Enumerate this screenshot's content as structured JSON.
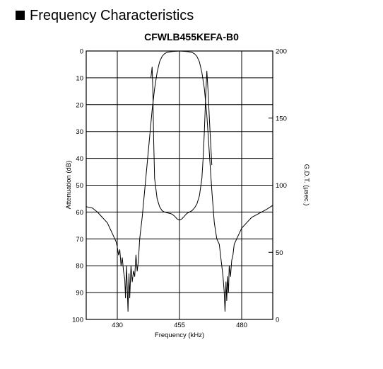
{
  "page": {
    "heading": "Frequency Characteristics"
  },
  "chart_data": {
    "type": "line",
    "title": "CFWLB455KEFA-B0",
    "xlabel": "Frequency (kHz)",
    "ylabel": "Attenuation (dB)",
    "y2label": "G.D.T. (µsec.)",
    "xlim": [
      417.5,
      492.5
    ],
    "ylim": [
      100,
      0
    ],
    "y2lim": [
      0,
      200
    ],
    "x_ticks": [
      430,
      455,
      480
    ],
    "y_ticks": [
      0,
      10,
      20,
      30,
      40,
      50,
      60,
      70,
      80,
      90,
      100
    ],
    "y2_ticks": [
      0,
      50,
      100,
      150,
      200
    ],
    "grid": true,
    "series": [
      {
        "axis": "left",
        "x": [
          417.5,
          420,
          422,
          424,
          426,
          427,
          428,
          429,
          429.5,
          430,
          430.5,
          431,
          431.5,
          432,
          432.5,
          433,
          433.3,
          433.7,
          434,
          434.3,
          434.7,
          435,
          435.5,
          436,
          436.5,
          437,
          437.5,
          438,
          438.5,
          439,
          440,
          441,
          442,
          443,
          444,
          445,
          446,
          447,
          448,
          449,
          450,
          452,
          455,
          458,
          460,
          461,
          462,
          463,
          464,
          465,
          466,
          467,
          468,
          469,
          470,
          471,
          471.5,
          472,
          472.5,
          473,
          473.3,
          473.7,
          474,
          474.3,
          474.7,
          475,
          475.5,
          476,
          476.5,
          477,
          478,
          479,
          480,
          482,
          484,
          486,
          488,
          490,
          492.5
        ],
        "values": [
          58,
          58.5,
          60,
          62,
          64,
          66,
          68,
          70,
          71,
          73,
          76,
          74,
          80,
          77,
          82,
          85,
          92,
          80,
          88,
          97,
          83,
          92,
          80,
          86,
          82,
          84,
          76,
          82,
          78,
          70,
          62,
          52,
          42,
          32,
          22,
          14,
          8,
          4,
          2,
          1,
          0.5,
          0.2,
          0,
          0.2,
          0.5,
          1,
          2,
          4,
          8,
          14,
          24,
          38,
          52,
          64,
          70,
          72,
          76,
          80,
          84,
          90,
          97,
          86,
          93,
          84,
          90,
          80,
          84,
          78,
          76,
          72,
          70,
          68,
          66,
          64,
          62,
          61,
          60,
          59,
          57.5
        ]
      },
      {
        "axis": "right",
        "x": [
          443.5,
          444,
          444.3,
          444.6,
          445,
          446,
          447,
          448,
          449,
          450,
          451,
          452,
          453,
          454,
          455,
          456,
          457,
          458,
          459,
          460,
          461,
          462,
          463,
          464,
          464.5,
          465,
          465.5,
          466,
          466.5,
          467,
          468
        ],
        "values": [
          180,
          188,
          170,
          135,
          105,
          90,
          84,
          81,
          80,
          79.5,
          79,
          78.5,
          77,
          75,
          74,
          75,
          77,
          79,
          80,
          81,
          83,
          86,
          92,
          105,
          120,
          140,
          165,
          185,
          170,
          150,
          115
        ]
      }
    ]
  }
}
